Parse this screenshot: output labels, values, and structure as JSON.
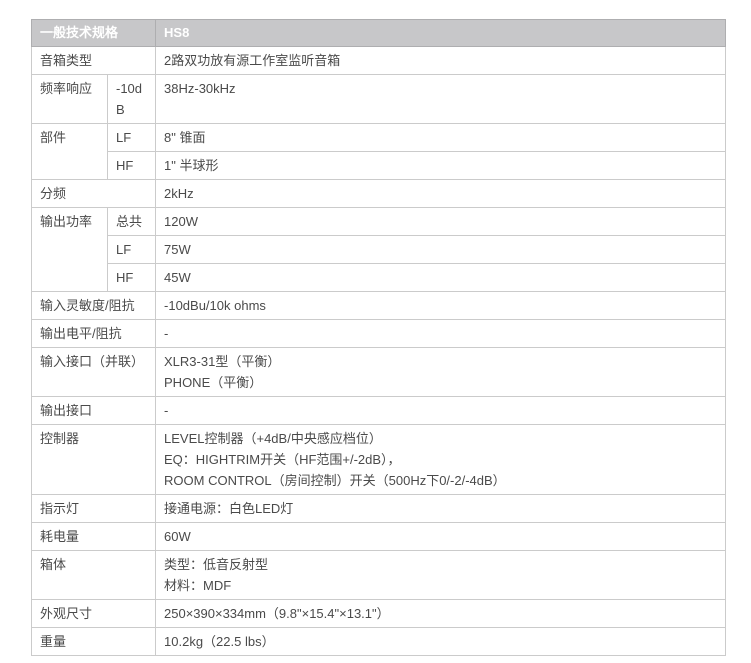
{
  "table": {
    "header": {
      "title": "一般技术规格",
      "model": "HS8"
    },
    "colors": {
      "header_bg": "#c7c7c9",
      "header_text": "#ffffff",
      "border": "#cbcbcb",
      "body_text": "#4a4a4a"
    },
    "rows": [
      {
        "label": "音箱类型",
        "value": "2路双功放有源工作室监听音箱"
      },
      {
        "label": "频率响应",
        "sub": "-10dB",
        "value": "38Hz-30kHz"
      },
      {
        "label": "部件",
        "sub": "LF",
        "value": "8\" 锥面"
      },
      {
        "sub": "HF",
        "value": "1\" 半球形"
      },
      {
        "label": "分频",
        "value": "2kHz"
      },
      {
        "label": "输出功率",
        "sub": "总共",
        "value": "120W"
      },
      {
        "sub": "LF",
        "value": "75W"
      },
      {
        "sub": "HF",
        "value": "45W"
      },
      {
        "label": "输入灵敏度/阻抗",
        "value": "-10dBu/10k ohms"
      },
      {
        "label": "输出电平/阻抗",
        "value": "-"
      },
      {
        "label": "输入接口（并联）",
        "value_lines": [
          "XLR3-31型（平衡）",
          "PHONE（平衡）"
        ]
      },
      {
        "label": "输出接口",
        "value": "-"
      },
      {
        "label": "控制器",
        "value_lines": [
          "LEVEL控制器（+4dB/中央感应档位）",
          "EQ：HIGHTRIM开关（HF范围+/-2dB），",
          "ROOM CONTROL（房间控制）开关（500Hz下0/-2/-4dB）"
        ]
      },
      {
        "label": "指示灯",
        "value": "接通电源：白色LED灯"
      },
      {
        "label": "耗电量",
        "value": "60W"
      },
      {
        "label": "箱体",
        "value_lines": [
          "类型：低音反射型",
          "材料：MDF"
        ]
      },
      {
        "label": "外观尺寸",
        "value": "250×390×334mm（9.8\"×15.4\"×13.1\"）"
      },
      {
        "label": "重量",
        "value": "10.2kg（22.5 lbs）"
      }
    ]
  }
}
